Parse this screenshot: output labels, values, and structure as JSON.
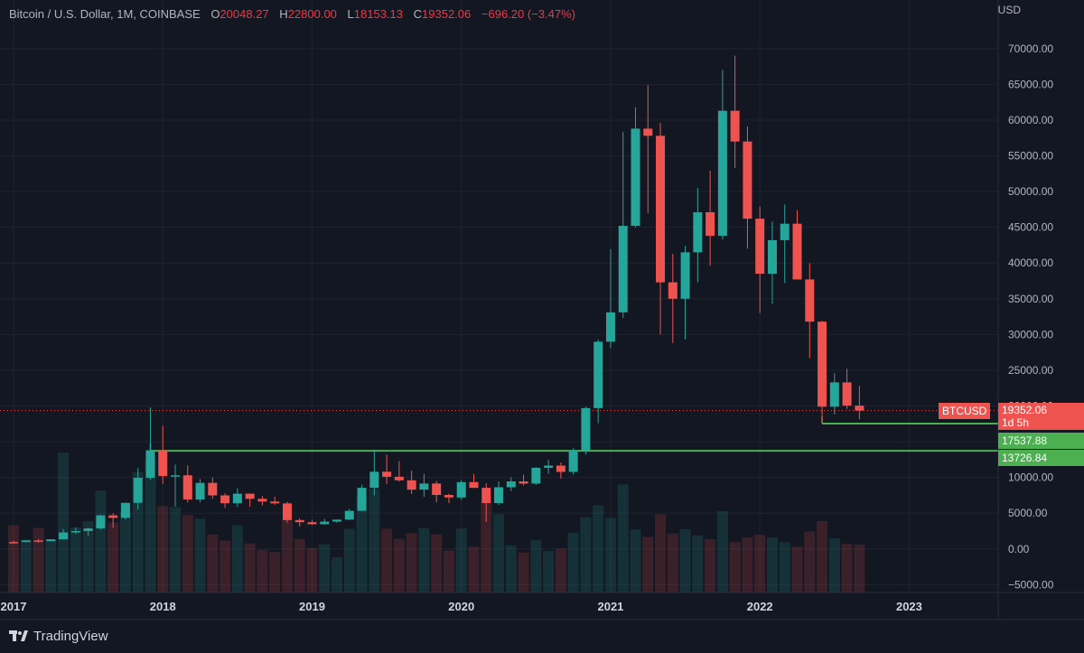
{
  "header": {
    "symbol": "Bitcoin / U.S. Dollar, 1M, COINBASE",
    "o_label": "O",
    "o_value": "20048.27",
    "h_label": "H",
    "h_value": "22800.00",
    "l_label": "L",
    "l_value": "18153.13",
    "c_label": "C",
    "c_value": "19352.06",
    "change": "−696.20 (−3.47%)"
  },
  "axis_unit": "USD",
  "brand": "TradingView",
  "price_tags": {
    "symbol_label": "BTCUSD",
    "last_price": "19352.06",
    "countdown": "1d 5h",
    "support_1": "17537.88",
    "support_2": "13726.84"
  },
  "colors": {
    "up": "#26a69a",
    "down": "#ef5350",
    "support": "#4caf50",
    "background": "#131722"
  },
  "chart_data": {
    "type": "candlestick",
    "timeframe": "1M",
    "ylim": [
      -6000,
      72000
    ],
    "y_ticks": [
      70000,
      65000,
      60000,
      55000,
      50000,
      45000,
      40000,
      35000,
      30000,
      25000,
      20000,
      15000,
      10000,
      5000,
      0,
      -5000
    ],
    "x_ticks": [
      "2017",
      "2018",
      "2019",
      "2020",
      "2021",
      "2022",
      "2023"
    ],
    "horizontal_levels": [
      17537.88,
      13726.84
    ],
    "last_price": 19352.06,
    "candles": [
      {
        "t": "2017-01",
        "o": 970,
        "h": 1150,
        "l": 750,
        "c": 965
      },
      {
        "t": "2017-02",
        "o": 965,
        "h": 1200,
        "l": 930,
        "c": 1190
      },
      {
        "t": "2017-03",
        "o": 1190,
        "h": 1350,
        "l": 890,
        "c": 1080
      },
      {
        "t": "2017-04",
        "o": 1080,
        "h": 1360,
        "l": 1060,
        "c": 1350
      },
      {
        "t": "2017-05",
        "o": 1350,
        "h": 2780,
        "l": 1320,
        "c": 2300
      },
      {
        "t": "2017-06",
        "o": 2300,
        "h": 3000,
        "l": 2100,
        "c": 2500
      },
      {
        "t": "2017-07",
        "o": 2500,
        "h": 2950,
        "l": 1830,
        "c": 2870
      },
      {
        "t": "2017-08",
        "o": 2870,
        "h": 4800,
        "l": 2700,
        "c": 4700
      },
      {
        "t": "2017-09",
        "o": 4700,
        "h": 5000,
        "l": 2950,
        "c": 4340
      },
      {
        "t": "2017-10",
        "o": 4340,
        "h": 6450,
        "l": 4100,
        "c": 6450
      },
      {
        "t": "2017-11",
        "o": 6450,
        "h": 11300,
        "l": 5500,
        "c": 9950
      },
      {
        "t": "2017-12",
        "o": 9950,
        "h": 19800,
        "l": 9700,
        "c": 13800
      },
      {
        "t": "2018-01",
        "o": 13800,
        "h": 17200,
        "l": 9100,
        "c": 10200
      },
      {
        "t": "2018-02",
        "o": 10200,
        "h": 11800,
        "l": 5900,
        "c": 10300
      },
      {
        "t": "2018-03",
        "o": 10300,
        "h": 11700,
        "l": 6500,
        "c": 6920
      },
      {
        "t": "2018-04",
        "o": 6920,
        "h": 9770,
        "l": 6500,
        "c": 9240
      },
      {
        "t": "2018-05",
        "o": 9240,
        "h": 10000,
        "l": 7000,
        "c": 7490
      },
      {
        "t": "2018-06",
        "o": 7490,
        "h": 7780,
        "l": 5760,
        "c": 6390
      },
      {
        "t": "2018-07",
        "o": 6390,
        "h": 8480,
        "l": 5860,
        "c": 7730
      },
      {
        "t": "2018-08",
        "o": 7730,
        "h": 7760,
        "l": 5880,
        "c": 7010
      },
      {
        "t": "2018-09",
        "o": 7010,
        "h": 7400,
        "l": 6100,
        "c": 6630
      },
      {
        "t": "2018-10",
        "o": 6630,
        "h": 7300,
        "l": 6200,
        "c": 6370
      },
      {
        "t": "2018-11",
        "o": 6370,
        "h": 6600,
        "l": 3650,
        "c": 4040
      },
      {
        "t": "2018-12",
        "o": 4040,
        "h": 4300,
        "l": 3150,
        "c": 3740
      },
      {
        "t": "2019-01",
        "o": 3740,
        "h": 4100,
        "l": 3350,
        "c": 3460
      },
      {
        "t": "2019-02",
        "o": 3460,
        "h": 4200,
        "l": 3380,
        "c": 3820
      },
      {
        "t": "2019-03",
        "o": 3820,
        "h": 4120,
        "l": 3670,
        "c": 4100
      },
      {
        "t": "2019-04",
        "o": 4100,
        "h": 5600,
        "l": 4050,
        "c": 5330
      },
      {
        "t": "2019-05",
        "o": 5330,
        "h": 9000,
        "l": 5320,
        "c": 8550
      },
      {
        "t": "2019-06",
        "o": 8550,
        "h": 13900,
        "l": 7500,
        "c": 10800
      },
      {
        "t": "2019-07",
        "o": 10800,
        "h": 13200,
        "l": 9100,
        "c": 10090
      },
      {
        "t": "2019-08",
        "o": 10090,
        "h": 12300,
        "l": 9400,
        "c": 9600
      },
      {
        "t": "2019-09",
        "o": 9600,
        "h": 10950,
        "l": 7700,
        "c": 8290
      },
      {
        "t": "2019-10",
        "o": 8290,
        "h": 10500,
        "l": 7300,
        "c": 9150
      },
      {
        "t": "2019-11",
        "o": 9150,
        "h": 9500,
        "l": 6500,
        "c": 7550
      },
      {
        "t": "2019-12",
        "o": 7550,
        "h": 7750,
        "l": 6400,
        "c": 7200
      },
      {
        "t": "2020-01",
        "o": 7200,
        "h": 9600,
        "l": 6850,
        "c": 9350
      },
      {
        "t": "2020-02",
        "o": 9350,
        "h": 10500,
        "l": 8500,
        "c": 8550
      },
      {
        "t": "2020-03",
        "o": 8550,
        "h": 9200,
        "l": 3800,
        "c": 6420
      },
      {
        "t": "2020-04",
        "o": 6420,
        "h": 9450,
        "l": 6150,
        "c": 8630
      },
      {
        "t": "2020-05",
        "o": 8630,
        "h": 10050,
        "l": 8100,
        "c": 9450
      },
      {
        "t": "2020-06",
        "o": 9450,
        "h": 10400,
        "l": 8900,
        "c": 9140
      },
      {
        "t": "2020-07",
        "o": 9140,
        "h": 11450,
        "l": 8950,
        "c": 11350
      },
      {
        "t": "2020-08",
        "o": 11350,
        "h": 12480,
        "l": 10500,
        "c": 11660
      },
      {
        "t": "2020-09",
        "o": 11660,
        "h": 12100,
        "l": 9820,
        "c": 10780
      },
      {
        "t": "2020-10",
        "o": 10780,
        "h": 14100,
        "l": 10400,
        "c": 13800
      },
      {
        "t": "2020-11",
        "o": 13800,
        "h": 19900,
        "l": 13200,
        "c": 19700
      },
      {
        "t": "2020-12",
        "o": 19700,
        "h": 29300,
        "l": 17600,
        "c": 28990
      },
      {
        "t": "2021-01",
        "o": 28990,
        "h": 41950,
        "l": 28100,
        "c": 33100
      },
      {
        "t": "2021-02",
        "o": 33100,
        "h": 58350,
        "l": 32300,
        "c": 45200
      },
      {
        "t": "2021-03",
        "o": 45200,
        "h": 61800,
        "l": 45000,
        "c": 58800
      },
      {
        "t": "2021-04",
        "o": 58800,
        "h": 64900,
        "l": 47000,
        "c": 57800
      },
      {
        "t": "2021-05",
        "o": 57800,
        "h": 59600,
        "l": 30000,
        "c": 37300
      },
      {
        "t": "2021-06",
        "o": 37300,
        "h": 41300,
        "l": 28800,
        "c": 35000
      },
      {
        "t": "2021-07",
        "o": 35000,
        "h": 42400,
        "l": 29300,
        "c": 41500
      },
      {
        "t": "2021-08",
        "o": 41500,
        "h": 50500,
        "l": 37300,
        "c": 47100
      },
      {
        "t": "2021-09",
        "o": 47100,
        "h": 52900,
        "l": 39600,
        "c": 43800
      },
      {
        "t": "2021-10",
        "o": 43800,
        "h": 67000,
        "l": 43300,
        "c": 61300
      },
      {
        "t": "2021-11",
        "o": 61300,
        "h": 69000,
        "l": 53300,
        "c": 57000
      },
      {
        "t": "2021-12",
        "o": 57000,
        "h": 59100,
        "l": 42000,
        "c": 46200
      },
      {
        "t": "2022-01",
        "o": 46200,
        "h": 47900,
        "l": 33000,
        "c": 38500
      },
      {
        "t": "2022-02",
        "o": 38500,
        "h": 45800,
        "l": 34300,
        "c": 43200
      },
      {
        "t": "2022-03",
        "o": 43200,
        "h": 48200,
        "l": 37200,
        "c": 45500
      },
      {
        "t": "2022-04",
        "o": 45500,
        "h": 47400,
        "l": 37700,
        "c": 37700
      },
      {
        "t": "2022-05",
        "o": 37700,
        "h": 40000,
        "l": 26700,
        "c": 31800
      },
      {
        "t": "2022-06",
        "o": 31800,
        "h": 31900,
        "l": 17600,
        "c": 19900
      },
      {
        "t": "2022-07",
        "o": 19900,
        "h": 24600,
        "l": 18800,
        "c": 23300
      },
      {
        "t": "2022-08",
        "o": 23300,
        "h": 25200,
        "l": 19600,
        "c": 20050
      },
      {
        "t": "2022-09",
        "o": 20048.27,
        "h": 22800,
        "l": 18153.13,
        "c": 19352.06
      }
    ]
  }
}
